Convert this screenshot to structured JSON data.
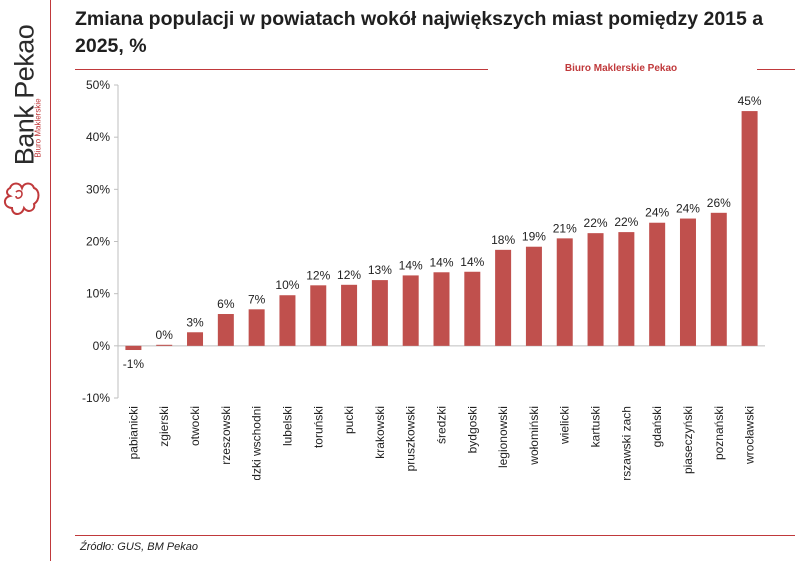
{
  "title": "Zmiana populacji w powiatach wokół największych miast pomiędzy 2015 a 2025, %",
  "brand": {
    "name": "Bank Pekao",
    "sub": "Biuro Maklerskie"
  },
  "company": "Biuro Maklerskie Pekao",
  "source": "Źródło: GUS, BM Pekao",
  "colors": {
    "bar": "#c0504d",
    "accent": "#c0393b",
    "axis": "#bfbfbf"
  },
  "chart_data": {
    "type": "bar",
    "categories": [
      "pabianicki",
      "zgierski",
      "otwocki",
      "rzeszowski",
      "łódzki wschodni",
      "lubelski",
      "toruński",
      "pucki",
      "krakowski",
      "pruszkowski",
      "średzki",
      "bydgoski",
      "legionowski",
      "wołomiński",
      "wielicki",
      "kartuski",
      "warszawski zach",
      "gdański",
      "piaseczyński",
      "poznański",
      "wrocławski"
    ],
    "values": [
      -0.8,
      0.2,
      2.6,
      6.1,
      7.0,
      9.7,
      11.6,
      11.7,
      12.6,
      13.5,
      14.1,
      14.2,
      18.4,
      19.0,
      20.6,
      21.6,
      21.8,
      23.6,
      24.4,
      25.5,
      45.0
    ],
    "labels": [
      "-1%",
      "0%",
      "3%",
      "6%",
      "7%",
      "10%",
      "12%",
      "12%",
      "13%",
      "14%",
      "14%",
      "14%",
      "18%",
      "19%",
      "21%",
      "22%",
      "22%",
      "24%",
      "24%",
      "26%",
      "45%"
    ],
    "y_ticks": [
      "50%",
      "40%",
      "30%",
      "20%",
      "10%",
      "0%",
      "-10%"
    ],
    "ylim": [
      -10,
      50
    ],
    "grid": false,
    "legend": "none"
  }
}
